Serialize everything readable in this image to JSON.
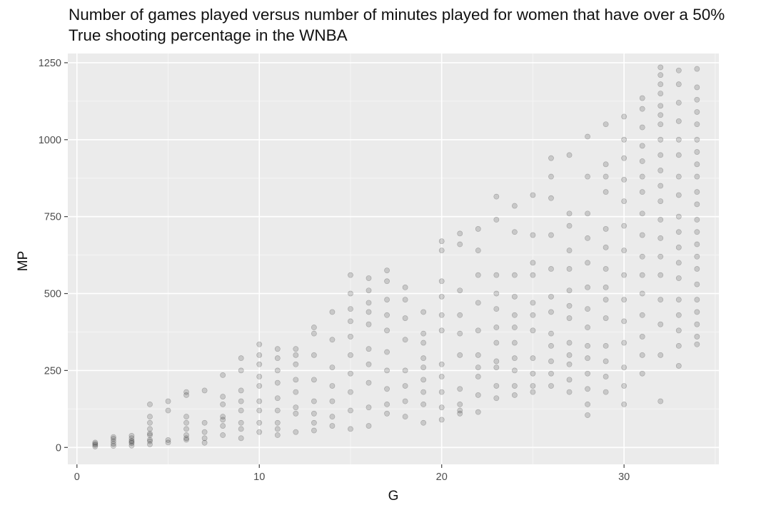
{
  "chart_data": {
    "type": "scatter",
    "title": "Number of games played versus number of minutes played for women that have over a 50% True shooting percentage in the WNBA",
    "xlabel": "G",
    "ylabel": "MP",
    "xlim": [
      -0.5,
      35.2
    ],
    "ylim": [
      -55,
      1280
    ],
    "x_ticks": [
      0,
      10,
      20,
      30
    ],
    "x_tick_labels": [
      "0",
      "10",
      "20",
      "30"
    ],
    "y_ticks": [
      0,
      250,
      500,
      750,
      1000,
      1250
    ],
    "y_tick_labels": [
      "0",
      "250",
      "500",
      "750",
      "1000",
      "1250"
    ],
    "grid": true,
    "legend": "none",
    "point_color": "#000000",
    "point_alpha": 0.15,
    "panel_background": "#ebebeb",
    "x": [
      1,
      1,
      1,
      1,
      2,
      2,
      2,
      2,
      2,
      3,
      3,
      3,
      3,
      3,
      3,
      4,
      4,
      4,
      4,
      4,
      4,
      4,
      4,
      4,
      5,
      5,
      5,
      5,
      6,
      6,
      6,
      6,
      6,
      6,
      6,
      6,
      7,
      7,
      7,
      7,
      7,
      8,
      8,
      8,
      8,
      8,
      8,
      8,
      9,
      9,
      9,
      9,
      9,
      9,
      9,
      9,
      10,
      10,
      10,
      10,
      10,
      10,
      10,
      10,
      10,
      11,
      11,
      11,
      11,
      11,
      11,
      11,
      11,
      11,
      12,
      12,
      12,
      12,
      12,
      12,
      12,
      12,
      13,
      13,
      13,
      13,
      13,
      13,
      13,
      13,
      14,
      14,
      14,
      14,
      14,
      14,
      14,
      15,
      15,
      15,
      15,
      15,
      15,
      15,
      15,
      15,
      15,
      16,
      16,
      16,
      16,
      16,
      16,
      16,
      16,
      16,
      16,
      17,
      17,
      17,
      17,
      17,
      17,
      17,
      17,
      17,
      17,
      18,
      18,
      18,
      18,
      18,
      18,
      18,
      18,
      19,
      19,
      19,
      19,
      19,
      19,
      19,
      19,
      19,
      20,
      20,
      20,
      20,
      20,
      20,
      20,
      20,
      20,
      20,
      20,
      21,
      21,
      21,
      21,
      21,
      21,
      21,
      21,
      21,
      21,
      22,
      22,
      22,
      22,
      22,
      22,
      22,
      22,
      22,
      22,
      23,
      23,
      23,
      23,
      23,
      23,
      23,
      23,
      23,
      23,
      23,
      24,
      24,
      24,
      24,
      24,
      24,
      24,
      24,
      24,
      24,
      24,
      25,
      25,
      25,
      25,
      25,
      25,
      25,
      25,
      25,
      25,
      25,
      26,
      26,
      26,
      26,
      26,
      26,
      26,
      26,
      26,
      26,
      26,
      26,
      27,
      27,
      27,
      27,
      27,
      27,
      27,
      27,
      27,
      27,
      27,
      27,
      27,
      28,
      28,
      28,
      28,
      28,
      28,
      28,
      28,
      28,
      28,
      28,
      28,
      28,
      28,
      29,
      29,
      29,
      29,
      29,
      29,
      29,
      29,
      29,
      29,
      29,
      29,
      29,
      29,
      30,
      30,
      30,
      30,
      30,
      30,
      30,
      30,
      30,
      30,
      30,
      30,
      30,
      30,
      31,
      31,
      31,
      31,
      31,
      31,
      31,
      31,
      31,
      31,
      31,
      31,
      31,
      31,
      31,
      31,
      32,
      32,
      32,
      32,
      32,
      32,
      32,
      32,
      32,
      32,
      32,
      32,
      32,
      32,
      32,
      32,
      32,
      32,
      32,
      32,
      33,
      33,
      33,
      33,
      33,
      33,
      33,
      33,
      33,
      33,
      33,
      33,
      33,
      33,
      33,
      33,
      33,
      33,
      34,
      34,
      34,
      34,
      34,
      34,
      34,
      34,
      34,
      34,
      34,
      34,
      34,
      34,
      34,
      34,
      34,
      34,
      34,
      34,
      34,
      34
    ],
    "y": [
      3,
      8,
      12,
      16,
      5,
      12,
      20,
      28,
      34,
      6,
      14,
      22,
      30,
      38,
      18,
      10,
      20,
      40,
      60,
      80,
      100,
      140,
      25,
      45,
      16,
      24,
      120,
      150,
      25,
      40,
      60,
      80,
      100,
      170,
      180,
      30,
      15,
      30,
      50,
      80,
      185,
      40,
      70,
      100,
      140,
      165,
      235,
      90,
      30,
      60,
      80,
      120,
      150,
      185,
      250,
      290,
      50,
      80,
      120,
      150,
      200,
      230,
      270,
      300,
      335,
      40,
      80,
      120,
      160,
      210,
      250,
      290,
      320,
      60,
      110,
      130,
      180,
      220,
      270,
      300,
      320,
      50,
      80,
      110,
      150,
      220,
      300,
      370,
      390,
      55,
      100,
      150,
      200,
      260,
      350,
      440,
      70,
      120,
      180,
      240,
      300,
      360,
      410,
      450,
      500,
      560,
      60,
      130,
      210,
      270,
      320,
      400,
      440,
      470,
      510,
      550,
      70,
      140,
      190,
      250,
      310,
      380,
      430,
      480,
      540,
      575,
      110,
      150,
      200,
      250,
      350,
      420,
      480,
      520,
      100,
      140,
      180,
      220,
      260,
      290,
      340,
      370,
      440,
      80,
      130,
      180,
      230,
      270,
      380,
      430,
      490,
      540,
      640,
      670,
      90,
      110,
      140,
      190,
      300,
      370,
      430,
      510,
      660,
      695,
      120,
      170,
      230,
      260,
      300,
      380,
      470,
      560,
      640,
      710,
      115,
      200,
      260,
      280,
      340,
      390,
      450,
      500,
      560,
      740,
      815,
      160,
      200,
      250,
      290,
      340,
      390,
      430,
      490,
      560,
      700,
      785,
      170,
      200,
      240,
      290,
      380,
      430,
      470,
      560,
      600,
      690,
      820,
      180,
      200,
      240,
      280,
      330,
      370,
      440,
      490,
      580,
      690,
      810,
      880,
      940,
      180,
      220,
      270,
      300,
      340,
      420,
      460,
      510,
      580,
      640,
      720,
      760,
      950,
      105,
      140,
      190,
      240,
      290,
      330,
      390,
      450,
      520,
      600,
      680,
      760,
      880,
      1010,
      180,
      230,
      280,
      330,
      420,
      480,
      520,
      580,
      650,
      710,
      830,
      880,
      920,
      1050,
      140,
      200,
      260,
      340,
      410,
      480,
      560,
      640,
      720,
      800,
      870,
      940,
      1000,
      1075,
      240,
      300,
      360,
      430,
      500,
      560,
      620,
      690,
      760,
      830,
      880,
      930,
      980,
      1040,
      1100,
      1135,
      150,
      300,
      400,
      480,
      560,
      620,
      680,
      740,
      800,
      850,
      900,
      950,
      1000,
      1050,
      1080,
      1110,
      1150,
      1180,
      1210,
      1235,
      265,
      330,
      380,
      430,
      480,
      550,
      600,
      650,
      700,
      750,
      820,
      880,
      950,
      1000,
      1060,
      1120,
      1180,
      1225,
      335,
      360,
      400,
      440,
      480,
      530,
      580,
      620,
      660,
      700,
      740,
      790,
      830,
      880,
      920,
      960,
      1000,
      1050,
      1090,
      1130,
      1170,
      1230
    ]
  }
}
